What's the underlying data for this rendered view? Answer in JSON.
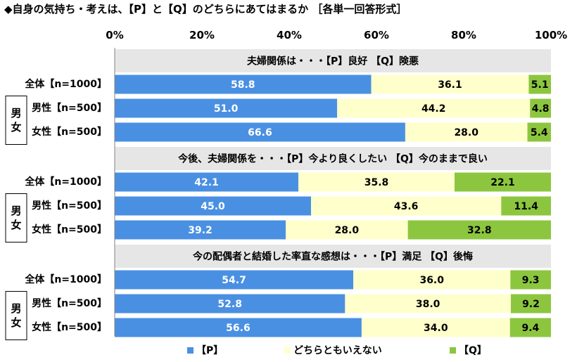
{
  "title": "◆自身の気持ち・考えは、【P】と【Q】のどちらにあてはまるか ［各単一回答形式］",
  "colors": {
    "p": "#4a90e2",
    "mid": "#ffffcc",
    "q": "#8cc63f",
    "band": "#e6e6e6",
    "axis": "#808080"
  },
  "legend": [
    "【P】",
    "どちらともいえない",
    "【Q】"
  ],
  "group_label": "男女",
  "chart_data": {
    "type": "bar",
    "orientation": "horizontal",
    "stacked": true,
    "xlim": [
      0,
      100
    ],
    "xticks": [
      "0%",
      "20%",
      "40%",
      "60%",
      "80%",
      "100%"
    ],
    "series_names": [
      "【P】",
      "どちらともいえない",
      "【Q】"
    ],
    "sections": [
      {
        "heading": "夫婦関係は・・・【P】良好 【Q】険悪",
        "rows": [
          {
            "label": "全体【n=1000】",
            "values": [
              58.8,
              36.1,
              5.1
            ]
          },
          {
            "label": "男性【n=500】",
            "values": [
              51.0,
              44.2,
              4.8
            ]
          },
          {
            "label": "女性【n=500】",
            "values": [
              66.6,
              28.0,
              5.4
            ]
          }
        ]
      },
      {
        "heading": "今後、夫婦関係を・・・【P】今より良くしたい 【Q】今のままで良い",
        "rows": [
          {
            "label": "全体【n=1000】",
            "values": [
              42.1,
              35.8,
              22.1
            ]
          },
          {
            "label": "男性【n=500】",
            "values": [
              45.0,
              43.6,
              11.4
            ]
          },
          {
            "label": "女性【n=500】",
            "values": [
              39.2,
              28.0,
              32.8
            ]
          }
        ]
      },
      {
        "heading": "今の配偶者と結婚した率直な感想は・・・【P】満足 【Q】後悔",
        "rows": [
          {
            "label": "全体【n=1000】",
            "values": [
              54.7,
              36.0,
              9.3
            ]
          },
          {
            "label": "男性【n=500】",
            "values": [
              52.8,
              38.0,
              9.2
            ]
          },
          {
            "label": "女性【n=500】",
            "values": [
              56.6,
              34.0,
              9.4
            ]
          }
        ]
      }
    ]
  }
}
